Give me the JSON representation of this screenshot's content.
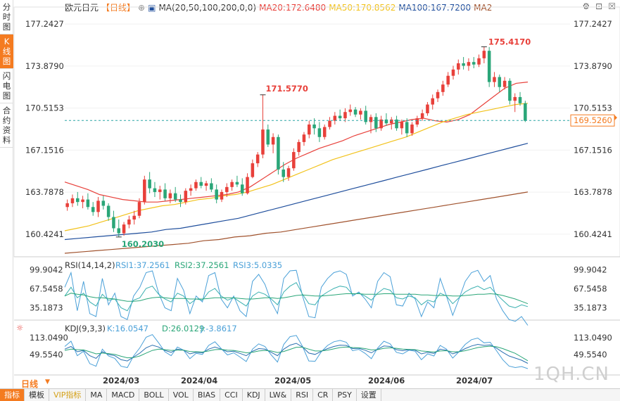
{
  "side_tabs": [
    "分时图",
    "K线图",
    "闪电图",
    "合约资料"
  ],
  "main_legend": {
    "name": "欧元日元",
    "period": "【日线】",
    "ma_label": "MA(20,50,100,200,0,0)",
    "ma20": "MA20:172.6480",
    "ma50": "MA50:170.8562",
    "ma100": "MA100:167.7200",
    "ma200": "MA2"
  },
  "price_axis": [
    "177.2427",
    "173.8790",
    "170.5153",
    "167.1516",
    "163.7878",
    "160.4241"
  ],
  "price_axis_left": [
    "177.2427",
    "173.8790",
    "170.5153",
    "167.1516",
    "163.7878",
    "160.4241"
  ],
  "current_price": "169.5260",
  "high_label": "175.4170",
  "low_label": "160.2030",
  "mid_high_label": "171.5770",
  "rsi_legend": {
    "name": "RSI(14,14,2)",
    "rsi1": "RSI1:37.2561",
    "rsi2": "RSI2:37.2561",
    "rsi3": "RSI3:5.0335"
  },
  "rsi_axis": [
    "99.9042",
    "67.5458",
    "35.1873"
  ],
  "kdj_legend": {
    "name": "KDJ(9,3,3)",
    "k": "K:16.0547",
    "d": "D:26.0129",
    "j": "J:-3.8617"
  },
  "kdj_axis": [
    "113.0490",
    "49.5540"
  ],
  "date_labels": [
    "2024/03",
    "2024/04",
    "2024/05",
    "2024/06",
    "2024/07"
  ],
  "period_button": "日线",
  "bottom_tabs": [
    "指标",
    "模板",
    "VIP指标",
    "MA",
    "MACD",
    "BOLL",
    "VOL",
    "BIAS",
    "CCI",
    "KDJ",
    "LW&",
    "RSI",
    "CR",
    "PSY",
    "设置"
  ],
  "watermark": "1QH.CN",
  "colors": {
    "up": "#e8403a",
    "down": "#2aa678",
    "ma20": "#e8403a",
    "ma50": "#f2c21b",
    "ma100": "#1f4e9c",
    "ma200": "#a0522d",
    "accent": "#f47b20"
  },
  "chart_data": {
    "type": "candlestick",
    "ylim": [
      158.9,
      178.6
    ],
    "candles": [
      [
        162.6,
        163.2,
        162.3,
        162.9
      ],
      [
        162.9,
        163.6,
        162.6,
        163.3
      ],
      [
        163.3,
        163.8,
        162.7,
        163.0
      ],
      [
        163.0,
        163.5,
        162.5,
        163.2
      ],
      [
        163.2,
        163.7,
        162.4,
        162.6
      ],
      [
        162.6,
        163.0,
        161.9,
        162.2
      ],
      [
        162.2,
        163.4,
        161.8,
        163.1
      ],
      [
        163.1,
        163.5,
        162.4,
        162.7
      ],
      [
        162.7,
        162.9,
        161.5,
        161.8
      ],
      [
        161.8,
        162.3,
        160.6,
        160.9
      ],
      [
        160.9,
        161.6,
        160.2,
        160.5
      ],
      [
        160.5,
        161.4,
        160.3,
        161.2
      ],
      [
        161.2,
        161.9,
        160.9,
        161.6
      ],
      [
        161.6,
        162.3,
        161.2,
        161.9
      ],
      [
        161.9,
        163.3,
        161.7,
        163.0
      ],
      [
        163.0,
        165.1,
        162.8,
        164.8
      ],
      [
        164.8,
        165.4,
        163.7,
        164.1
      ],
      [
        164.1,
        164.6,
        163.4,
        163.8
      ],
      [
        163.8,
        164.3,
        163.2,
        164.0
      ],
      [
        164.0,
        164.5,
        163.1,
        163.3
      ],
      [
        163.3,
        164.0,
        162.9,
        163.7
      ],
      [
        163.7,
        164.2,
        163.0,
        163.2
      ],
      [
        163.2,
        163.6,
        162.6,
        163.0
      ],
      [
        163.0,
        164.1,
        162.8,
        163.9
      ],
      [
        163.9,
        164.4,
        163.5,
        164.1
      ],
      [
        164.1,
        164.8,
        163.9,
        164.6
      ],
      [
        164.6,
        165.0,
        164.1,
        164.3
      ],
      [
        164.3,
        164.7,
        163.9,
        164.5
      ],
      [
        164.5,
        164.9,
        163.8,
        164.0
      ],
      [
        164.0,
        164.4,
        162.9,
        163.2
      ],
      [
        163.2,
        164.0,
        163.0,
        163.8
      ],
      [
        163.8,
        164.5,
        163.4,
        164.2
      ],
      [
        164.2,
        164.8,
        163.9,
        164.6
      ],
      [
        164.6,
        165.1,
        164.2,
        164.4
      ],
      [
        164.4,
        164.9,
        163.5,
        163.7
      ],
      [
        163.7,
        165.3,
        163.6,
        165.0
      ],
      [
        165.0,
        166.4,
        164.9,
        166.1
      ],
      [
        166.1,
        167.0,
        165.8,
        166.8
      ],
      [
        166.8,
        171.6,
        166.5,
        168.8
      ],
      [
        168.8,
        169.2,
        167.4,
        167.6
      ],
      [
        167.6,
        168.5,
        166.9,
        168.2
      ],
      [
        168.2,
        168.4,
        165.2,
        165.6
      ],
      [
        165.6,
        166.2,
        164.6,
        165.0
      ],
      [
        165.0,
        165.9,
        164.7,
        165.7
      ],
      [
        165.7,
        167.3,
        165.5,
        167.0
      ],
      [
        167.0,
        168.0,
        166.7,
        167.8
      ],
      [
        167.8,
        168.6,
        167.5,
        168.4
      ],
      [
        168.4,
        169.5,
        168.1,
        169.2
      ],
      [
        169.2,
        169.7,
        168.4,
        168.9
      ],
      [
        168.9,
        169.4,
        167.8,
        168.2
      ],
      [
        168.2,
        169.2,
        168.0,
        169.0
      ],
      [
        169.0,
        169.8,
        168.8,
        169.5
      ],
      [
        169.5,
        170.2,
        169.2,
        169.9
      ],
      [
        169.9,
        170.4,
        169.5,
        169.7
      ],
      [
        169.7,
        170.5,
        169.4,
        170.2
      ],
      [
        170.2,
        170.8,
        169.9,
        170.4
      ],
      [
        170.4,
        170.6,
        169.8,
        170.0
      ],
      [
        170.0,
        170.5,
        169.6,
        170.3
      ],
      [
        170.3,
        170.7,
        169.2,
        169.4
      ],
      [
        169.4,
        170.0,
        168.5,
        169.8
      ],
      [
        169.8,
        170.1,
        168.6,
        168.9
      ],
      [
        168.9,
        169.9,
        168.7,
        169.6
      ],
      [
        169.6,
        170.1,
        169.1,
        169.3
      ],
      [
        169.3,
        169.8,
        168.8,
        169.6
      ],
      [
        169.6,
        169.9,
        168.7,
        168.9
      ],
      [
        168.9,
        169.6,
        168.4,
        169.4
      ],
      [
        169.4,
        169.7,
        168.2,
        168.5
      ],
      [
        168.5,
        169.4,
        168.3,
        169.2
      ],
      [
        169.2,
        169.9,
        169.0,
        169.7
      ],
      [
        169.7,
        170.4,
        169.5,
        170.1
      ],
      [
        170.1,
        171.0,
        169.9,
        170.8
      ],
      [
        170.8,
        171.6,
        170.4,
        171.3
      ],
      [
        171.3,
        172.0,
        171.0,
        171.8
      ],
      [
        171.8,
        172.7,
        171.5,
        172.4
      ],
      [
        172.4,
        173.4,
        172.2,
        173.1
      ],
      [
        173.1,
        173.9,
        172.8,
        173.6
      ],
      [
        173.6,
        174.4,
        173.2,
        174.1
      ],
      [
        174.1,
        174.6,
        173.6,
        173.9
      ],
      [
        173.9,
        174.5,
        173.5,
        174.2
      ],
      [
        174.2,
        174.6,
        173.7,
        174.0
      ],
      [
        174.0,
        174.8,
        173.8,
        174.5
      ],
      [
        174.5,
        175.4,
        174.1,
        175.1
      ],
      [
        175.1,
        175.4,
        172.2,
        172.6
      ],
      [
        172.6,
        173.4,
        172.2,
        173.0
      ],
      [
        173.0,
        173.2,
        171.8,
        172.2
      ],
      [
        172.2,
        173.0,
        172.0,
        172.7
      ],
      [
        172.7,
        172.9,
        170.8,
        171.1
      ],
      [
        171.1,
        171.7,
        170.2,
        171.4
      ],
      [
        171.4,
        171.8,
        170.7,
        170.9
      ],
      [
        170.9,
        171.1,
        169.4,
        169.5
      ]
    ],
    "ma_series": [
      {
        "name": "MA20",
        "values": [
          164.6,
          164.3,
          164.0,
          163.6,
          163.4,
          163.2,
          163.1,
          163.0,
          163.0,
          163.1,
          163.2,
          163.3,
          163.4,
          163.5,
          163.6,
          163.8,
          164.2,
          164.8,
          165.4,
          166.0,
          166.5,
          166.9,
          167.3,
          167.6,
          167.9,
          168.3,
          168.6,
          168.9,
          169.2,
          169.4,
          169.6,
          169.7,
          169.5,
          169.4,
          169.6,
          170.0,
          170.7,
          171.4,
          172.1,
          172.5,
          172.6
        ]
      },
      {
        "name": "MA50",
        "values": [
          160.7,
          160.9,
          161.1,
          161.4,
          161.7,
          162.0,
          162.3,
          162.5,
          162.7,
          162.8,
          163.0,
          163.2,
          163.3,
          163.5,
          163.6,
          163.8,
          164.1,
          164.4,
          164.8,
          165.2,
          165.6,
          166.0,
          166.4,
          166.7,
          167.0,
          167.3,
          167.6,
          167.9,
          168.2,
          168.6,
          169.0,
          169.4,
          169.7,
          170.0,
          170.2,
          170.4,
          170.6,
          170.8,
          170.9
        ]
      },
      {
        "name": "MA100",
        "values": [
          160.0,
          160.1,
          160.2,
          160.3,
          160.4,
          160.5,
          160.6,
          160.8,
          160.9,
          161.1,
          161.3,
          161.5,
          161.7,
          162.0,
          162.3,
          162.6,
          162.9,
          163.2,
          163.5,
          163.8,
          164.1,
          164.4,
          164.7,
          165.0,
          165.3,
          165.6,
          165.9,
          166.2,
          166.5,
          166.8,
          167.1,
          167.4,
          167.7
        ]
      },
      {
        "name": "MA200",
        "values": [
          158.9,
          159.0,
          159.1,
          159.2,
          159.3,
          159.4,
          159.5,
          159.6,
          159.7,
          159.9,
          160.0,
          160.2,
          160.3,
          160.5,
          160.6,
          160.8,
          161.0,
          161.2,
          161.4,
          161.6,
          161.8,
          162.0,
          162.2,
          162.4,
          162.6,
          162.8,
          163.0,
          163.2,
          163.4,
          163.6,
          163.8
        ]
      }
    ],
    "rsi": {
      "ylim": [
        20,
        110
      ],
      "rsi1": [
        55,
        70,
        52,
        60,
        45,
        38,
        58,
        48,
        50,
        35,
        30,
        48,
        52,
        68,
        72,
        58,
        50,
        45,
        60,
        55,
        42,
        50,
        48,
        62,
        68,
        55,
        48,
        52,
        45,
        38,
        55,
        62,
        58,
        50,
        40,
        62,
        72,
        78,
        58,
        42,
        40,
        55,
        62,
        68,
        72,
        70,
        58,
        60,
        55,
        48,
        60,
        68,
        65,
        52,
        50,
        55,
        52,
        40,
        48,
        45,
        60,
        55,
        42,
        52,
        62,
        68,
        72,
        66,
        70,
        58,
        48,
        38,
        35,
        40,
        37
      ],
      "rsi2": [
        55,
        60,
        58,
        57,
        54,
        52,
        52,
        51,
        50,
        48,
        46,
        46,
        47,
        50,
        52,
        53,
        52,
        51,
        51,
        51,
        50,
        50,
        50,
        51,
        52,
        52,
        52,
        52,
        51,
        50,
        50,
        51,
        52,
        52,
        51,
        52,
        54,
        56,
        57,
        56,
        55,
        55,
        56,
        57,
        58,
        59,
        59,
        59,
        58,
        58,
        58,
        59,
        59,
        58,
        58,
        58,
        58,
        57,
        57,
        56,
        56,
        56,
        55,
        55,
        56,
        57,
        58,
        58,
        59,
        58,
        56,
        53,
        50,
        46,
        42
      ],
      "rsi3": [
        70,
        95,
        30,
        80,
        25,
        20,
        85,
        40,
        60,
        20,
        15,
        55,
        70,
        95,
        98,
        60,
        35,
        30,
        85,
        65,
        25,
        55,
        45,
        90,
        95,
        50,
        35,
        55,
        30,
        20,
        80,
        92,
        75,
        45,
        25,
        85,
        98,
        99,
        55,
        20,
        18,
        70,
        85,
        95,
        98,
        92,
        55,
        62,
        50,
        35,
        80,
        95,
        88,
        40,
        38,
        60,
        50,
        20,
        45,
        35,
        85,
        55,
        22,
        50,
        80,
        95,
        99,
        80,
        90,
        50,
        30,
        15,
        12,
        20,
        5
      ]
    },
    "kdj": {
      "ylim": [
        -20,
        140
      ],
      "k": [
        70,
        80,
        60,
        65,
        45,
        35,
        60,
        50,
        45,
        30,
        25,
        40,
        55,
        75,
        85,
        78,
        65,
        58,
        70,
        66,
        52,
        58,
        56,
        70,
        78,
        70,
        60,
        62,
        54,
        45,
        62,
        72,
        70,
        58,
        45,
        70,
        85,
        92,
        78,
        55,
        50,
        62,
        72,
        80,
        85,
        84,
        72,
        73,
        66,
        56,
        70,
        82,
        80,
        68,
        64,
        68,
        66,
        52,
        58,
        54,
        70,
        66,
        52,
        60,
        72,
        82,
        88,
        84,
        86,
        74,
        58,
        44,
        36,
        28,
        16
      ],
      "d": [
        65,
        70,
        68,
        67,
        60,
        52,
        55,
        53,
        50,
        43,
        37,
        38,
        44,
        55,
        65,
        70,
        68,
        65,
        66,
        66,
        61,
        60,
        59,
        63,
        68,
        69,
        66,
        65,
        61,
        56,
        58,
        63,
        65,
        63,
        57,
        61,
        69,
        77,
        77,
        70,
        63,
        63,
        66,
        71,
        76,
        78,
        76,
        75,
        72,
        67,
        68,
        73,
        75,
        73,
        70,
        69,
        68,
        63,
        61,
        59,
        63,
        64,
        60,
        60,
        64,
        70,
        76,
        79,
        81,
        79,
        72,
        63,
        54,
        40,
        26
      ],
      "j": [
        80,
        100,
        45,
        62,
        15,
        5,
        70,
        44,
        35,
        5,
        0,
        44,
        75,
        115,
        125,
        94,
        60,
        45,
        78,
        66,
        34,
        54,
        50,
        84,
        98,
        72,
        48,
        56,
        40,
        23,
        70,
        90,
        80,
        48,
        21,
        88,
        117,
        122,
        80,
        25,
        24,
        60,
        84,
        98,
        103,
        96,
        64,
        69,
        54,
        34,
        74,
        100,
        90,
        58,
        52,
        66,
        62,
        30,
        52,
        44,
        84,
        70,
        36,
        60,
        88,
        106,
        112,
        94,
        96,
        64,
        30,
        6,
        0,
        4,
        -4
      ]
    },
    "dates": [
      "2024/03",
      "2024/04",
      "2024/05",
      "2024/06",
      "2024/07"
    ]
  }
}
